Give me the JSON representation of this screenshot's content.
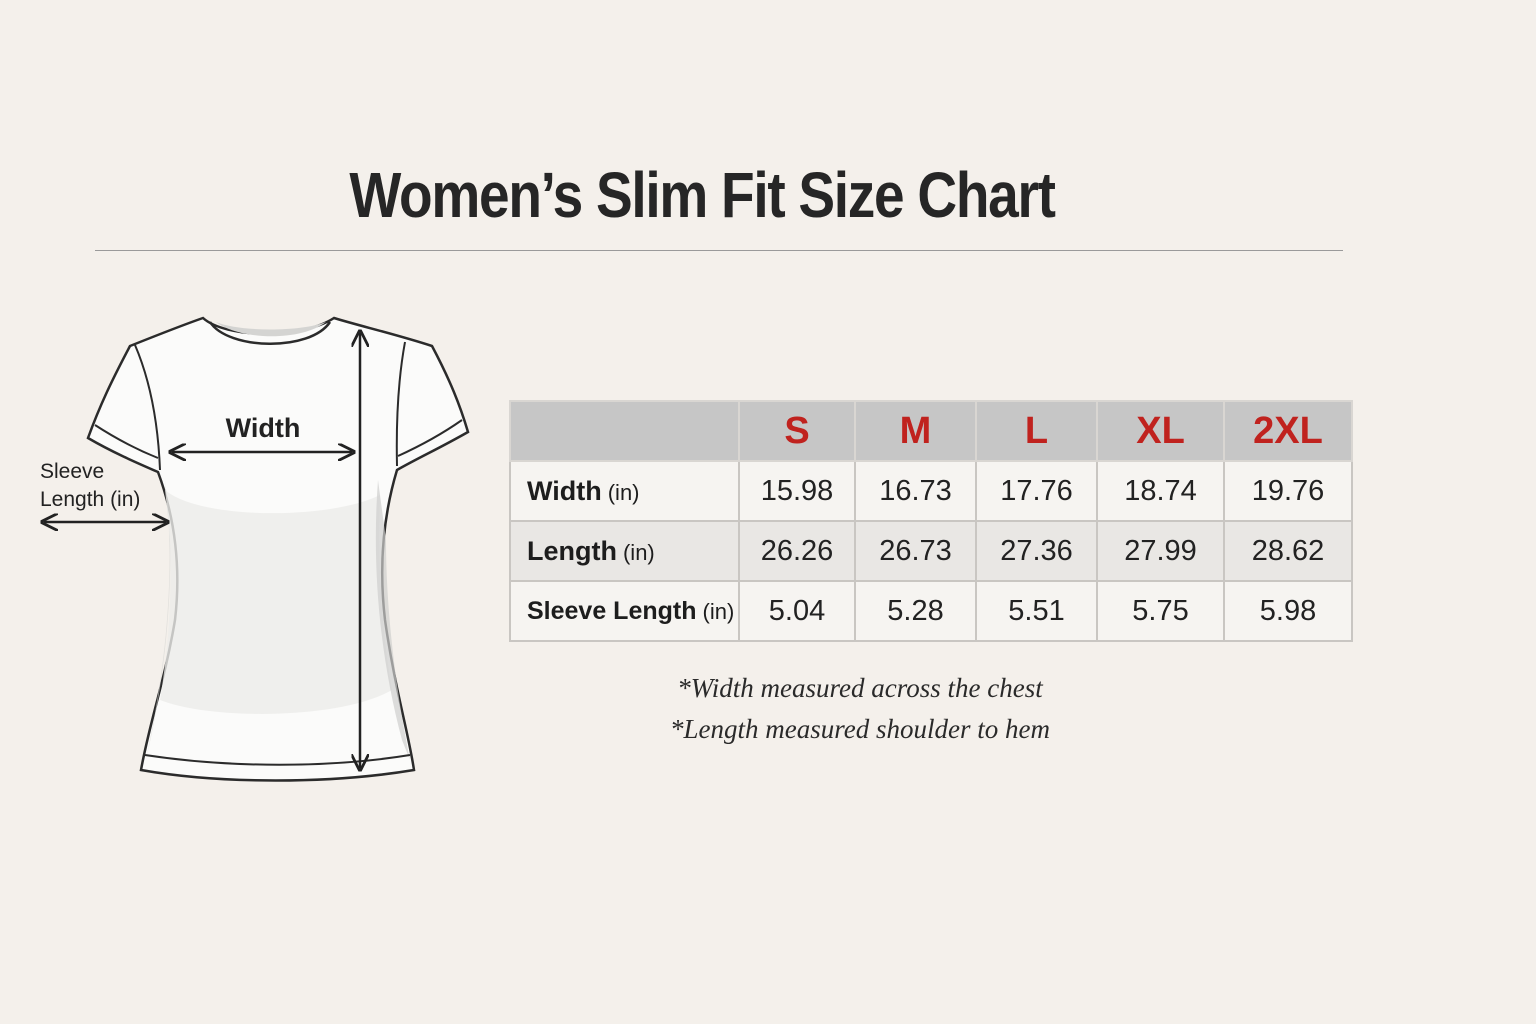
{
  "title": "Women’s Slim Fit Size Chart",
  "diagram": {
    "width_label": "Width",
    "sleeve_label_line1": "Sleeve",
    "sleeve_label_line2": "Length (in)"
  },
  "table": {
    "sizes": [
      "S",
      "M",
      "L",
      "XL",
      "2XL"
    ],
    "rows": [
      {
        "label": "Width",
        "unit": "(in)",
        "values": [
          "15.98",
          "16.73",
          "17.76",
          "18.74",
          "19.76"
        ]
      },
      {
        "label": "Length",
        "unit": "(in)",
        "values": [
          "26.26",
          "26.73",
          "27.36",
          "27.99",
          "28.62"
        ]
      },
      {
        "label": "Sleeve Length",
        "unit": "(in)",
        "values": [
          "5.04",
          "5.28",
          "5.51",
          "5.75",
          "5.98"
        ]
      }
    ]
  },
  "notes": [
    "*Width measured across the chest",
    "*Length measured shoulder to hem"
  ],
  "colors": {
    "background": "#f4f0eb",
    "size_header": "#c0221e",
    "header_fill": "#c6c6c6"
  }
}
